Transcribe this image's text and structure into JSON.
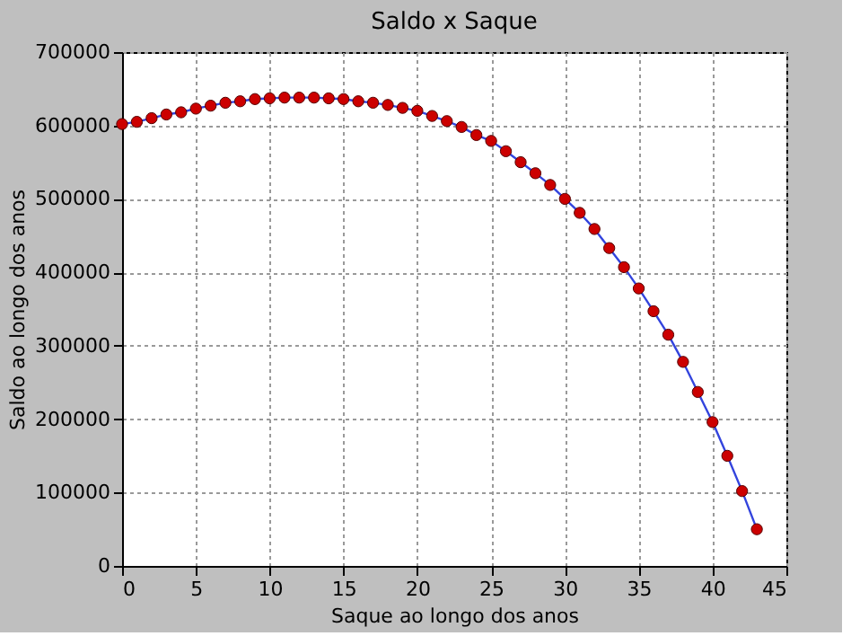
{
  "chart_data": {
    "type": "line",
    "title": "Saldo x Saque",
    "xlabel": "Saque ao longo dos anos",
    "ylabel": "Saldo ao longo dos anos",
    "x": [
      0,
      1,
      2,
      3,
      4,
      5,
      6,
      7,
      8,
      9,
      10,
      11,
      12,
      13,
      14,
      15,
      16,
      17,
      18,
      19,
      20,
      21,
      22,
      23,
      24,
      25,
      26,
      27,
      28,
      29,
      30,
      31,
      32,
      33,
      34,
      35,
      36,
      37,
      38,
      39,
      40,
      41,
      42,
      43
    ],
    "series": [
      {
        "color": "#3344dd",
        "marker": "none",
        "values": [
          602000,
          605000,
          610000,
          615000,
          618000,
          623000,
          627000,
          631000,
          633000,
          636000,
          637000,
          638000,
          638000,
          638000,
          637000,
          636000,
          633000,
          631000,
          628000,
          624000,
          620000,
          613000,
          606000,
          598000,
          587000,
          579000,
          565000,
          550000,
          535000,
          519000,
          500000,
          481000,
          459000,
          433000,
          407000,
          378000,
          347000,
          315000,
          278000,
          237000,
          196000,
          150000,
          102000,
          50000
        ]
      },
      {
        "type": "scatter",
        "marker": "circle",
        "color": "#cc0000",
        "values": [
          602000,
          605000,
          610000,
          615000,
          618000,
          623000,
          627000,
          631000,
          633000,
          636000,
          637000,
          638000,
          638000,
          638000,
          637000,
          636000,
          633000,
          631000,
          628000,
          624000,
          620000,
          613000,
          606000,
          598000,
          587000,
          579000,
          565000,
          550000,
          535000,
          519000,
          500000,
          481000,
          459000,
          433000,
          407000,
          378000,
          347000,
          315000,
          278000,
          237000,
          196000,
          150000,
          102000,
          50000
        ]
      }
    ],
    "line_style": "solid",
    "grid": true,
    "xlim": [
      0,
      45
    ],
    "xticks": [
      0,
      5,
      10,
      15,
      20,
      25,
      30,
      35,
      40,
      45
    ],
    "ylim": [
      0,
      700000
    ],
    "yticks": [
      0,
      100000,
      200000,
      300000,
      400000,
      500000,
      600000,
      700000
    ]
  }
}
